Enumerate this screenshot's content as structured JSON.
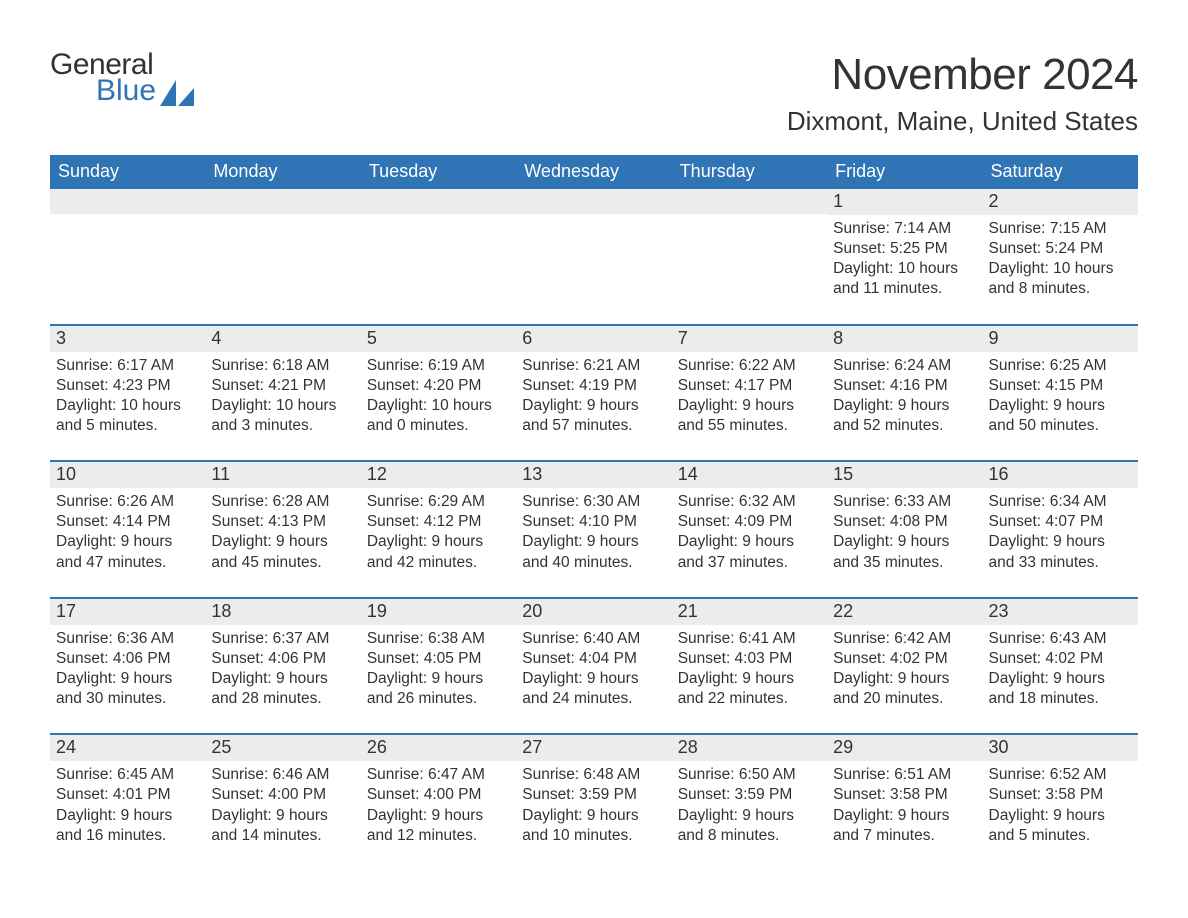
{
  "brand": {
    "word1": "General",
    "word2": "Blue",
    "accent_color": "#2f74b5",
    "text_color": "#333333"
  },
  "title": "November 2024",
  "location": "Dixmont, Maine, United States",
  "title_fontsize": 44,
  "location_fontsize": 26,
  "header_bg": "#2f74b5",
  "header_fg": "#ffffff",
  "daynum_bg": "#ececec",
  "row_border_color": "#2f74b5",
  "page_bg": "#ffffff",
  "body_fontsize": 15.5,
  "weekdays": [
    "Sunday",
    "Monday",
    "Tuesday",
    "Wednesday",
    "Thursday",
    "Friday",
    "Saturday"
  ],
  "leading_blanks": 5,
  "days": [
    {
      "n": 1,
      "sunrise": "7:14 AM",
      "sunset": "5:25 PM",
      "daylight": "10 hours and 11 minutes."
    },
    {
      "n": 2,
      "sunrise": "7:15 AM",
      "sunset": "5:24 PM",
      "daylight": "10 hours and 8 minutes."
    },
    {
      "n": 3,
      "sunrise": "6:17 AM",
      "sunset": "4:23 PM",
      "daylight": "10 hours and 5 minutes."
    },
    {
      "n": 4,
      "sunrise": "6:18 AM",
      "sunset": "4:21 PM",
      "daylight": "10 hours and 3 minutes."
    },
    {
      "n": 5,
      "sunrise": "6:19 AM",
      "sunset": "4:20 PM",
      "daylight": "10 hours and 0 minutes."
    },
    {
      "n": 6,
      "sunrise": "6:21 AM",
      "sunset": "4:19 PM",
      "daylight": "9 hours and 57 minutes."
    },
    {
      "n": 7,
      "sunrise": "6:22 AM",
      "sunset": "4:17 PM",
      "daylight": "9 hours and 55 minutes."
    },
    {
      "n": 8,
      "sunrise": "6:24 AM",
      "sunset": "4:16 PM",
      "daylight": "9 hours and 52 minutes."
    },
    {
      "n": 9,
      "sunrise": "6:25 AM",
      "sunset": "4:15 PM",
      "daylight": "9 hours and 50 minutes."
    },
    {
      "n": 10,
      "sunrise": "6:26 AM",
      "sunset": "4:14 PM",
      "daylight": "9 hours and 47 minutes."
    },
    {
      "n": 11,
      "sunrise": "6:28 AM",
      "sunset": "4:13 PM",
      "daylight": "9 hours and 45 minutes."
    },
    {
      "n": 12,
      "sunrise": "6:29 AM",
      "sunset": "4:12 PM",
      "daylight": "9 hours and 42 minutes."
    },
    {
      "n": 13,
      "sunrise": "6:30 AM",
      "sunset": "4:10 PM",
      "daylight": "9 hours and 40 minutes."
    },
    {
      "n": 14,
      "sunrise": "6:32 AM",
      "sunset": "4:09 PM",
      "daylight": "9 hours and 37 minutes."
    },
    {
      "n": 15,
      "sunrise": "6:33 AM",
      "sunset": "4:08 PM",
      "daylight": "9 hours and 35 minutes."
    },
    {
      "n": 16,
      "sunrise": "6:34 AM",
      "sunset": "4:07 PM",
      "daylight": "9 hours and 33 minutes."
    },
    {
      "n": 17,
      "sunrise": "6:36 AM",
      "sunset": "4:06 PM",
      "daylight": "9 hours and 30 minutes."
    },
    {
      "n": 18,
      "sunrise": "6:37 AM",
      "sunset": "4:06 PM",
      "daylight": "9 hours and 28 minutes."
    },
    {
      "n": 19,
      "sunrise": "6:38 AM",
      "sunset": "4:05 PM",
      "daylight": "9 hours and 26 minutes."
    },
    {
      "n": 20,
      "sunrise": "6:40 AM",
      "sunset": "4:04 PM",
      "daylight": "9 hours and 24 minutes."
    },
    {
      "n": 21,
      "sunrise": "6:41 AM",
      "sunset": "4:03 PM",
      "daylight": "9 hours and 22 minutes."
    },
    {
      "n": 22,
      "sunrise": "6:42 AM",
      "sunset": "4:02 PM",
      "daylight": "9 hours and 20 minutes."
    },
    {
      "n": 23,
      "sunrise": "6:43 AM",
      "sunset": "4:02 PM",
      "daylight": "9 hours and 18 minutes."
    },
    {
      "n": 24,
      "sunrise": "6:45 AM",
      "sunset": "4:01 PM",
      "daylight": "9 hours and 16 minutes."
    },
    {
      "n": 25,
      "sunrise": "6:46 AM",
      "sunset": "4:00 PM",
      "daylight": "9 hours and 14 minutes."
    },
    {
      "n": 26,
      "sunrise": "6:47 AM",
      "sunset": "4:00 PM",
      "daylight": "9 hours and 12 minutes."
    },
    {
      "n": 27,
      "sunrise": "6:48 AM",
      "sunset": "3:59 PM",
      "daylight": "9 hours and 10 minutes."
    },
    {
      "n": 28,
      "sunrise": "6:50 AM",
      "sunset": "3:59 PM",
      "daylight": "9 hours and 8 minutes."
    },
    {
      "n": 29,
      "sunrise": "6:51 AM",
      "sunset": "3:58 PM",
      "daylight": "9 hours and 7 minutes."
    },
    {
      "n": 30,
      "sunrise": "6:52 AM",
      "sunset": "3:58 PM",
      "daylight": "9 hours and 5 minutes."
    }
  ],
  "labels": {
    "sunrise": "Sunrise: ",
    "sunset": "Sunset: ",
    "daylight": "Daylight: "
  }
}
